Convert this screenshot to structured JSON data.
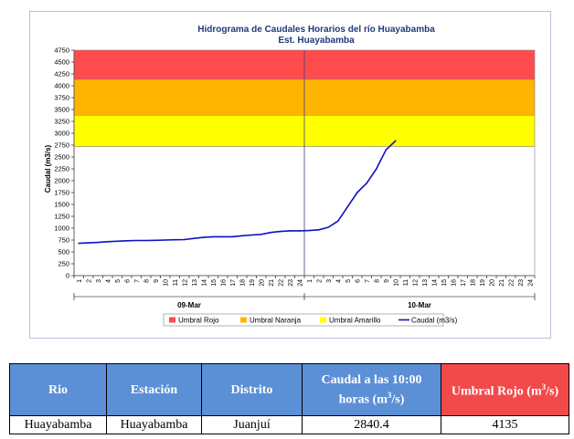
{
  "chart_data": {
    "type": "line",
    "title": "Hidrograma de Caudales Horarios del río Huayabamba",
    "subtitle": "Est. Huayabamba",
    "ylabel": "Caudal (m3/s)",
    "xlabel": "",
    "ylim": [
      0,
      4750
    ],
    "yticks": [
      0,
      250,
      500,
      750,
      1000,
      1250,
      1500,
      1750,
      2000,
      2250,
      2500,
      2750,
      3000,
      3250,
      3500,
      3750,
      4000,
      4250,
      4500,
      4750
    ],
    "x_tick_labels": [
      "1",
      "2",
      "3",
      "4",
      "5",
      "6",
      "7",
      "8",
      "9",
      "10",
      "11",
      "12",
      "13",
      "14",
      "15",
      "16",
      "17",
      "18",
      "19",
      "20",
      "21",
      "22",
      "23",
      "24",
      "1",
      "2",
      "3",
      "4",
      "5",
      "6",
      "7",
      "8",
      "9",
      "10",
      "11",
      "12",
      "13",
      "14",
      "15",
      "16",
      "17",
      "18",
      "19",
      "20",
      "21",
      "22",
      "23",
      "24"
    ],
    "day_labels": [
      "09-Mar",
      "10-Mar"
    ],
    "thresholds": [
      {
        "name": "Umbral Rojo",
        "from": 4135,
        "to": 4750,
        "color": "#ff4b4b"
      },
      {
        "name": "Umbral Naranja",
        "from": 3380,
        "to": 4135,
        "color": "#ffb400"
      },
      {
        "name": "Umbral Amarillo",
        "from": 2720,
        "to": 3380,
        "color": "#ffff00"
      }
    ],
    "series": [
      {
        "name": "Caudal (m3/s)",
        "color": "#1010c0",
        "x": [
          1,
          2,
          3,
          4,
          5,
          6,
          7,
          8,
          9,
          10,
          11,
          12,
          13,
          14,
          15,
          16,
          17,
          18,
          19,
          20,
          21,
          22,
          23,
          24,
          25,
          26,
          27,
          28,
          29,
          30,
          31,
          32,
          33,
          34
        ],
        "values": [
          680,
          690,
          700,
          715,
          725,
          735,
          740,
          740,
          745,
          750,
          755,
          760,
          785,
          805,
          820,
          820,
          820,
          840,
          855,
          870,
          910,
          930,
          945,
          945,
          950,
          965,
          1020,
          1150,
          1450,
          1750,
          1950,
          2250,
          2650,
          2840.4
        ]
      }
    ]
  },
  "table": {
    "headers": [
      "Rio",
      "Estación",
      "Distrito",
      "Caudal a las 10:00 horas (m3/s)",
      "Umbral Rojo (m3/s)"
    ],
    "row": [
      "Huayabamba",
      "Huayabamba",
      "Juanjuí",
      "2840.4",
      "4135"
    ]
  },
  "header_colors": {
    "blue": "#5b8fd6",
    "red": "#f24a4a"
  }
}
